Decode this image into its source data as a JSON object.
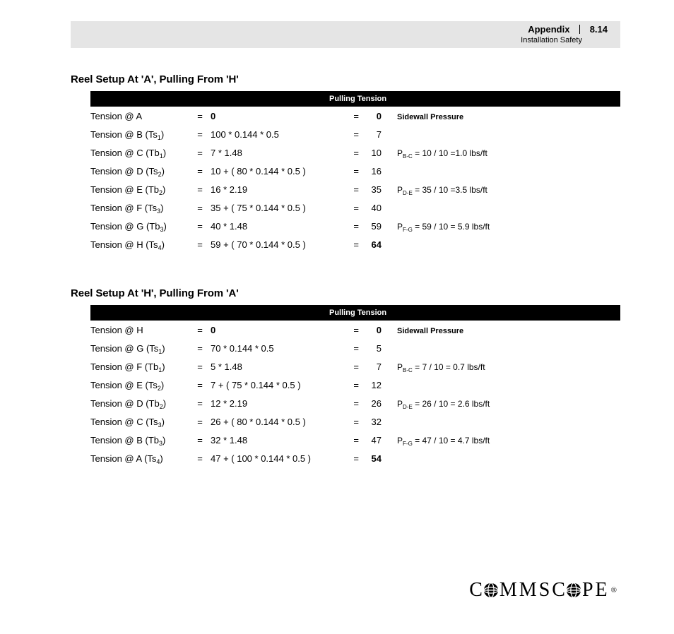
{
  "header": {
    "appendix": "Appendix",
    "number": "8.14",
    "subtitle": "Installation Safety"
  },
  "sections": [
    {
      "title": "Reel Setup At 'A', Pulling From 'H'",
      "barLabel": "Pulling Tension",
      "pressureHeader": "Sidewall Pressure",
      "rows": [
        {
          "label_pre": "Tension @ A",
          "label_sub": "",
          "formula": "0",
          "formula_bold": true,
          "result": "0",
          "result_bold": true,
          "pressure_pre": "",
          "pressure_sub": "",
          "pressure_post": "",
          "show_header": true
        },
        {
          "label_pre": "Tension @ B (Ts",
          "label_sub": "1",
          "formula": "100 * 0.144 * 0.5",
          "result": "7",
          "pressure_pre": "",
          "pressure_sub": "",
          "pressure_post": ""
        },
        {
          "label_pre": "Tension @ C (Tb",
          "label_sub": "1",
          "formula": "7 * 1.48",
          "result": "10",
          "pressure_pre": "P",
          "pressure_sub": "B-C",
          "pressure_post": " = 10 / 10 =1.0 lbs/ft"
        },
        {
          "label_pre": "Tension @ D (Ts",
          "label_sub": "2",
          "formula": "10 + ( 80 * 0.144 * 0.5 )",
          "result": "16",
          "pressure_pre": "",
          "pressure_sub": "",
          "pressure_post": ""
        },
        {
          "label_pre": "Tension @ E (Tb",
          "label_sub": "2",
          "formula": "16 * 2.19",
          "result": "35",
          "pressure_pre": "P",
          "pressure_sub": "D-E",
          "pressure_post": " = 35 / 10 =3.5 lbs/ft"
        },
        {
          "label_pre": "Tension @ F (Ts",
          "label_sub": "3",
          "formula": "35 + ( 75 * 0.144 * 0.5 )",
          "result": "40",
          "pressure_pre": "",
          "pressure_sub": "",
          "pressure_post": ""
        },
        {
          "label_pre": "Tension @ G (Tb",
          "label_sub": "3",
          "formula": "40 * 1.48",
          "result": "59",
          "pressure_pre": "P",
          "pressure_sub": "F-G",
          "pressure_post": " = 59 / 10 = 5.9 lbs/ft"
        },
        {
          "label_pre": "Tension @ H (Ts",
          "label_sub": "4",
          "formula": "59 + ( 70 * 0.144 * 0.5 )",
          "result": "64",
          "result_bold": true,
          "pressure_pre": "",
          "pressure_sub": "",
          "pressure_post": ""
        }
      ]
    },
    {
      "title": "Reel Setup At 'H', Pulling From 'A'",
      "barLabel": "Pulling Tension",
      "pressureHeader": "Sidewall Pressure",
      "rows": [
        {
          "label_pre": "Tension @ H",
          "label_sub": "",
          "formula": "0",
          "formula_bold": true,
          "result": "0",
          "result_bold": true,
          "pressure_pre": "",
          "pressure_sub": "",
          "pressure_post": "",
          "show_header": true
        },
        {
          "label_pre": "Tension @ G (Ts",
          "label_sub": "1",
          "formula": "70 * 0.144 * 0.5",
          "result": "5",
          "pressure_pre": "",
          "pressure_sub": "",
          "pressure_post": ""
        },
        {
          "label_pre": "Tension @ F (Tb",
          "label_sub": "1",
          "formula": "5 * 1.48",
          "result": "7",
          "pressure_pre": "P",
          "pressure_sub": "B-C",
          "pressure_post": " = 7 / 10 = 0.7 lbs/ft"
        },
        {
          "label_pre": "Tension @ E (Ts",
          "label_sub": "2",
          "formula": "7 + ( 75 * 0.144 * 0.5 )",
          "result": "12",
          "pressure_pre": "",
          "pressure_sub": "",
          "pressure_post": ""
        },
        {
          "label_pre": "Tension @ D (Tb",
          "label_sub": "2",
          "formula": "12 * 2.19",
          "result": "26",
          "pressure_pre": "P",
          "pressure_sub": "D-E",
          "pressure_post": " = 26 / 10 = 2.6 lbs/ft"
        },
        {
          "label_pre": "Tension @ C (Ts",
          "label_sub": "3",
          "formula": "26 + ( 80 * 0.144 * 0.5 )",
          "result": "32",
          "pressure_pre": "",
          "pressure_sub": "",
          "pressure_post": ""
        },
        {
          "label_pre": "Tension @ B (Tb",
          "label_sub": "3",
          "formula": "32 * 1.48",
          "result": "47",
          "pressure_pre": "P",
          "pressure_sub": "F-G",
          "pressure_post": " = 47 / 10 = 4.7 lbs/ft"
        },
        {
          "label_pre": "Tension @ A (Ts",
          "label_sub": "4",
          "formula": "47 + ( 100 * 0.144 * 0.5 )",
          "result": "54",
          "result_bold": true,
          "pressure_pre": "",
          "pressure_sub": "",
          "pressure_post": ""
        }
      ]
    }
  ],
  "logo": {
    "pre": "C",
    "mid": "MMSC",
    "post": "PE"
  }
}
